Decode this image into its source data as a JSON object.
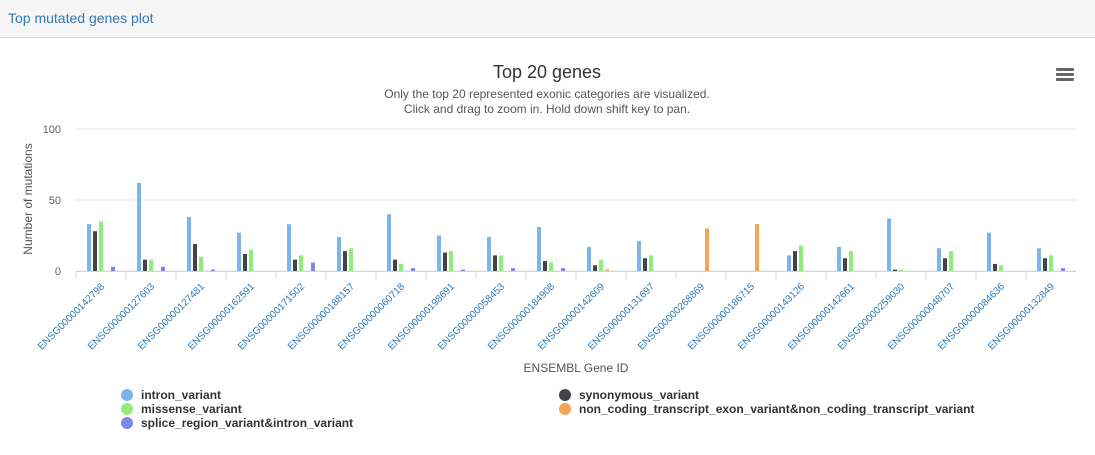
{
  "panel": {
    "title": "Top mutated genes plot"
  },
  "menu": {
    "icon": "hamburger-menu-icon"
  },
  "colors": {
    "intron_variant": "#7cb5ec",
    "synonymous_variant": "#434348",
    "missense_variant": "#90ed7d",
    "non_coding_transcript_exon_variant&non_coding_transcript_variant": "#f7a35c",
    "splice_region_variant&intron_variant": "#8085e9"
  },
  "chart_data": {
    "type": "bar",
    "title": "Top 20 genes",
    "subtitle_lines": [
      "Only the top 20 represented exonic categories are visualized.",
      "Click and drag to zoom in. Hold down shift key to pan."
    ],
    "xlabel": "ENSEMBL Gene ID",
    "ylabel": "Number of mutations",
    "ylim": [
      0,
      100
    ],
    "yticks": [
      0,
      50,
      100
    ],
    "grid": true,
    "legend_position": "bottom",
    "categories": [
      "ENSG00000142798",
      "ENSG00000127603",
      "ENSG00000127481",
      "ENSG00000162591",
      "ENSG00000171502",
      "ENSG00000188157",
      "ENSG00000060718",
      "ENSG00000198691",
      "ENSG00000058453",
      "ENSG00000184908",
      "ENSG00000142609",
      "ENSG00000131697",
      "ENSG00000268869",
      "ENSG00000186715",
      "ENSG00000143126",
      "ENSG00000142661",
      "ENSG00000259030",
      "ENSG00000048707",
      "ENSG00000084636",
      "ENSG00000132849"
    ],
    "series": [
      {
        "name": "intron_variant",
        "values": [
          33,
          62,
          38,
          27,
          33,
          24,
          40,
          25,
          24,
          31,
          17,
          21,
          0,
          0,
          11,
          17,
          37,
          16,
          27,
          16
        ]
      },
      {
        "name": "synonymous_variant",
        "values": [
          28,
          8,
          19,
          12,
          8,
          14,
          8,
          13,
          11,
          7,
          4,
          9,
          0,
          0,
          14,
          9,
          1,
          9,
          5,
          9
        ]
      },
      {
        "name": "missense_variant",
        "values": [
          35,
          8,
          10,
          15,
          11,
          16,
          5,
          14,
          11,
          6,
          8,
          11,
          0,
          0,
          18,
          14,
          1,
          14,
          4,
          11
        ]
      },
      {
        "name": "non_coding_transcript_exon_variant&non_coding_transcript_variant",
        "values": [
          0,
          0,
          0,
          0,
          0,
          0,
          0,
          0,
          0,
          0,
          1,
          0,
          30,
          33,
          0,
          0,
          0,
          0,
          0,
          0
        ]
      },
      {
        "name": "splice_region_variant&intron_variant",
        "values": [
          3,
          3,
          1,
          0,
          6,
          0,
          2,
          1,
          2,
          2,
          0,
          0,
          0,
          0,
          0,
          0,
          0,
          0,
          0,
          2
        ]
      }
    ]
  }
}
